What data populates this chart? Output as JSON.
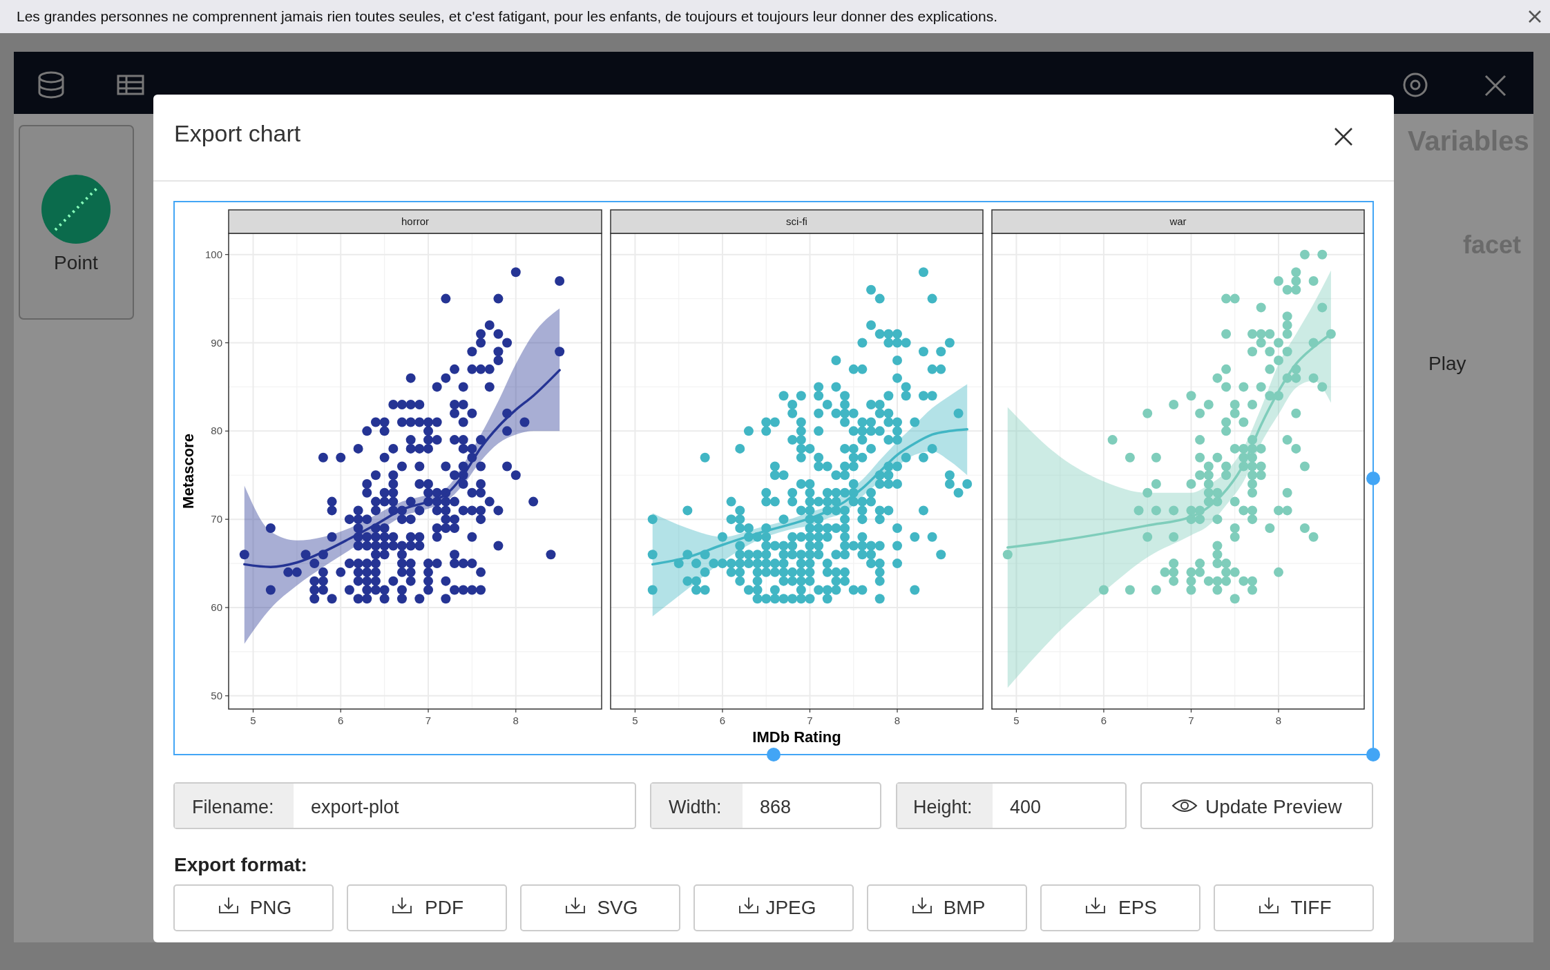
{
  "chart_data": [
    {
      "type": "scatter",
      "title": "horror",
      "ylabel": "Metascore",
      "xlim": [
        4.72,
        8.98
      ],
      "ylim": [
        48.5,
        102.4
      ],
      "xticks": [
        5,
        6,
        7,
        8
      ],
      "yticks": [
        50,
        60,
        70,
        80,
        90,
        100
      ],
      "grid": true,
      "annotations": [
        "Les grandes personnes ne comprennent jamais rien toutes seules, et c'est fatigant, pour les enfants, de toujours et toujours leur donner des explications.",
        "Export chart",
        "Filename:",
        "export-plot",
        "Width:",
        "868",
        "Height:",
        "400",
        "Update Preview",
        "Export format:",
        "PNG",
        "PDF",
        "SVG",
        "JPEG",
        "BMP",
        "EPS",
        "TIFF",
        "Point",
        "Variables",
        "facet",
        "Play"
      ],
      "series": [
        {
          "color": "#253494",
          "x": [
            8.5,
            8.0,
            7.2,
            7.8,
            7.7,
            7.6,
            7.8,
            7.6,
            7.9,
            7.5,
            7.8,
            8.5,
            7.8,
            7.3,
            7.5,
            7.6,
            7.7,
            6.8,
            7.2,
            7.1,
            7.4,
            7.7,
            6.6,
            6.7,
            6.8,
            6.9,
            7.3,
            7.4,
            7.3,
            7.5,
            7.9,
            6.4,
            6.5,
            6.7,
            6.8,
            6.9,
            7.0,
            7.1,
            7.4,
            8.1,
            6.3,
            6.5,
            7.0,
            7.9,
            6.8,
            7.0,
            7.1,
            7.3,
            7.4,
            7.6,
            6.2,
            6.6,
            6.8,
            6.9,
            7.0,
            7.4,
            7.5,
            5.8,
            6.0,
            6.5,
            7.5,
            6.7,
            6.9,
            7.2,
            7.4,
            7.6,
            7.9,
            6.4,
            6.6,
            7.3,
            7.4,
            8.0,
            6.3,
            6.6,
            6.9,
            7.0,
            7.4,
            7.6,
            6.3,
            6.5,
            6.6,
            7.0,
            7.1,
            7.2,
            7.5,
            7.6,
            5.9,
            6.4,
            6.5,
            6.6,
            6.8,
            7.0,
            7.1,
            7.2,
            7.3,
            7.7,
            8.2,
            5.9,
            6.2,
            6.4,
            6.6,
            6.7,
            6.9,
            7.1,
            7.2,
            7.4,
            7.5,
            7.6,
            7.8,
            6.1,
            6.2,
            6.3,
            6.7,
            6.8,
            7.2,
            7.3,
            7.6,
            5.2,
            6.2,
            6.4,
            6.5,
            7.1,
            7.2,
            7.3,
            5.9,
            6.2,
            6.3,
            6.4,
            6.5,
            6.6,
            6.8,
            6.9,
            7.1,
            7.5,
            6.2,
            6.3,
            6.4,
            6.5,
            6.6,
            6.7,
            6.8,
            6.9,
            7.8,
            4.9,
            5.6,
            5.8,
            6.4,
            6.5,
            6.7,
            7.3,
            8.4,
            5.7,
            6.1,
            6.2,
            6.3,
            6.4,
            6.7,
            6.8,
            7.0,
            7.1,
            7.3,
            7.4,
            7.5,
            5.4,
            5.5,
            5.8,
            6.0,
            6.2,
            6.3,
            6.4,
            6.7,
            6.8,
            7.0,
            7.6,
            5.7,
            5.8,
            6.2,
            6.3,
            6.4,
            6.6,
            6.8,
            7.0,
            7.2,
            5.2,
            5.7,
            5.8,
            6.1,
            6.3,
            6.4,
            6.5,
            6.7,
            7.0,
            7.3,
            7.4,
            7.5,
            7.6,
            5.7,
            5.9,
            6.2,
            6.3,
            6.5,
            6.7,
            6.9,
            7.2
          ],
          "values": [
            97,
            98,
            95,
            95,
            92,
            91,
            91,
            90,
            90,
            89,
            89,
            89,
            88,
            87,
            87,
            87,
            87,
            86,
            86,
            85,
            85,
            85,
            83,
            83,
            83,
            83,
            83,
            83,
            82,
            82,
            82,
            81,
            81,
            81,
            81,
            81,
            81,
            81,
            81,
            81,
            80,
            80,
            80,
            80,
            79,
            79,
            79,
            79,
            79,
            79,
            78,
            78,
            78,
            78,
            78,
            78,
            78,
            77,
            77,
            77,
            77,
            76,
            76,
            76,
            76,
            76,
            76,
            75,
            75,
            75,
            75,
            75,
            74,
            74,
            74,
            74,
            74,
            74,
            73,
            73,
            73,
            73,
            73,
            73,
            73,
            73,
            72,
            72,
            72,
            72,
            72,
            72,
            72,
            72,
            72,
            72,
            72,
            71,
            71,
            71,
            71,
            71,
            71,
            71,
            71,
            71,
            71,
            71,
            71,
            70,
            70,
            70,
            70,
            70,
            70,
            70,
            70,
            69,
            69,
            69,
            69,
            69,
            69,
            69,
            68,
            68,
            68,
            68,
            68,
            68,
            68,
            68,
            68,
            68,
            67,
            67,
            67,
            67,
            67,
            67,
            67,
            67,
            67,
            66,
            66,
            66,
            66,
            66,
            66,
            66,
            66,
            65,
            65,
            65,
            65,
            65,
            65,
            65,
            65,
            65,
            65,
            65,
            65,
            64,
            64,
            64,
            64,
            64,
            64,
            64,
            64,
            64,
            64,
            64,
            63,
            63,
            63,
            63,
            63,
            63,
            63,
            63,
            63,
            62,
            62,
            62,
            62,
            62,
            62,
            62,
            62,
            62,
            62,
            62,
            62,
            62,
            61,
            61,
            61,
            61,
            61,
            61,
            61,
            61
          ]
        },
        {
          "type": "line",
          "color": "#253494",
          "x": [
            4.9,
            5.2,
            5.5,
            5.8,
            6.1,
            6.4,
            6.7,
            7.0,
            7.2,
            7.4,
            7.6,
            7.8,
            8.0,
            8.2,
            8.5
          ],
          "values": [
            64.9,
            64.6,
            65.1,
            66.3,
            67.8,
            69.4,
            71.1,
            72.0,
            72.8,
            75.0,
            78.1,
            80.5,
            82.4,
            84.0,
            86.9
          ],
          "lower": [
            55.9,
            59.9,
            62.5,
            64.6,
            66.5,
            68.4,
            70.3,
            71.2,
            72.0,
            73.9,
            76.6,
            78.6,
            79.6,
            80.0,
            80.0
          ],
          "upper": [
            73.8,
            68.6,
            67.6,
            68.0,
            69.0,
            70.5,
            72.0,
            72.8,
            73.5,
            76.2,
            79.6,
            83.4,
            87.6,
            91.0,
            93.9
          ]
        }
      ]
    },
    {
      "type": "scatter",
      "title": "sci-fi",
      "xlabel": "IMDb Rating",
      "xlim": [
        4.72,
        8.98
      ],
      "ylim": [
        48.5,
        102.4
      ],
      "xticks": [
        5,
        6,
        7,
        8
      ],
      "yticks": [
        50,
        60,
        70,
        80,
        90,
        100
      ],
      "grid": true,
      "tick_labels": "x",
      "series": [
        {
          "color": "#41b6c4",
          "x": [
            8.3,
            7.7,
            7.8,
            8.4,
            7.7,
            7.8,
            7.9,
            8.0,
            7.6,
            7.9,
            8.0,
            8.1,
            8.6,
            8.3,
            8.5,
            7.3,
            8.0,
            7.5,
            7.6,
            8.4,
            8.5,
            8.0,
            7.1,
            7.3,
            8.1,
            6.7,
            6.9,
            7.1,
            7.4,
            7.9,
            8.1,
            8.3,
            8.4,
            6.8,
            7.2,
            7.4,
            7.7,
            7.8,
            6.8,
            7.1,
            7.3,
            7.4,
            7.5,
            7.8,
            7.9,
            8.7,
            6.5,
            6.6,
            6.9,
            7.4,
            7.6,
            7.7,
            7.9,
            8.0,
            8.2,
            6.3,
            6.5,
            6.9,
            7.1,
            7.5,
            7.6,
            7.7,
            7.8,
            8.0,
            6.8,
            6.9,
            7.6,
            7.9,
            8.0,
            6.2,
            6.9,
            7.0,
            7.4,
            7.5,
            7.7,
            8.4,
            5.8,
            6.9,
            7.1,
            7.5,
            7.6,
            8.1,
            8.3,
            6.6,
            7.1,
            7.2,
            7.4,
            7.5,
            7.9,
            8.0,
            6.6,
            6.7,
            7.3,
            7.4,
            7.8,
            7.9,
            8.6,
            6.9,
            7.0,
            7.5,
            7.8,
            7.9,
            8.0,
            8.6,
            8.8,
            6.5,
            6.8,
            7.0,
            7.2,
            7.3,
            7.4,
            7.5,
            7.7,
            8.7,
            6.1,
            6.5,
            6.6,
            6.8,
            7.0,
            7.1,
            7.2,
            7.3,
            7.5,
            7.6,
            7.7,
            5.6,
            6.2,
            6.9,
            7.0,
            7.2,
            7.3,
            7.4,
            7.6,
            7.8,
            7.9,
            8.3,
            5.2,
            6.1,
            6.2,
            6.7,
            7.0,
            7.1,
            7.4,
            7.6,
            7.8,
            6.2,
            6.3,
            6.5,
            7.0,
            7.1,
            7.2,
            7.3,
            7.4,
            8.0,
            6.0,
            6.3,
            6.4,
            6.5,
            6.8,
            6.9,
            7.0,
            7.1,
            7.2,
            7.4,
            7.6,
            8.2,
            8.4,
            6.2,
            6.5,
            6.6,
            6.7,
            6.8,
            7.0,
            7.1,
            7.4,
            7.5,
            7.6,
            7.7,
            7.8,
            8.0,
            5.2,
            5.6,
            5.8,
            6.2,
            6.3,
            6.4,
            6.5,
            6.7,
            6.8,
            6.9,
            7.0,
            7.1,
            7.3,
            7.4,
            7.6,
            7.7,
            8.5,
            5.5,
            5.7,
            5.9,
            6.0,
            6.1,
            6.2,
            6.3,
            6.4,
            6.5,
            6.6,
            6.7,
            6.9,
            7.0,
            7.2,
            7.7,
            7.8,
            8.0,
            5.8,
            6.1,
            6.2,
            6.4,
            6.5,
            6.6,
            6.7,
            6.8,
            6.9,
            7.0,
            7.2,
            7.3,
            7.4,
            7.8,
            5.6,
            5.7,
            6.2,
            6.4,
            6.7,
            6.8,
            6.9,
            7.0,
            7.3,
            7.4,
            7.8,
            5.2,
            5.7,
            5.8,
            6.3,
            6.4,
            6.6,
            6.9,
            7.1,
            7.2,
            7.3,
            7.5,
            7.6,
            8.2,
            6.4,
            6.5,
            6.6,
            6.7,
            6.8,
            6.9,
            7.0,
            7.2,
            7.8
          ],
          "values": [
            98,
            96,
            95,
            95,
            92,
            91,
            91,
            91,
            90,
            90,
            90,
            90,
            90,
            89,
            89,
            88,
            88,
            87,
            87,
            87,
            87,
            86,
            85,
            85,
            85,
            84,
            84,
            84,
            84,
            84,
            84,
            84,
            84,
            83,
            83,
            83,
            83,
            83,
            82,
            82,
            82,
            82,
            82,
            82,
            82,
            82,
            81,
            81,
            81,
            81,
            81,
            81,
            81,
            81,
            81,
            80,
            80,
            80,
            80,
            80,
            80,
            80,
            80,
            80,
            79,
            79,
            79,
            79,
            79,
            78,
            78,
            78,
            78,
            78,
            78,
            78,
            77,
            77,
            77,
            77,
            77,
            77,
            77,
            76,
            76,
            76,
            76,
            76,
            76,
            76,
            75,
            75,
            75,
            75,
            75,
            75,
            75,
            74,
            74,
            74,
            74,
            74,
            74,
            74,
            74,
            73,
            73,
            73,
            73,
            73,
            73,
            73,
            73,
            73,
            72,
            72,
            72,
            72,
            72,
            72,
            72,
            72,
            72,
            72,
            72,
            71,
            71,
            71,
            71,
            71,
            71,
            71,
            71,
            71,
            71,
            71,
            70,
            70,
            70,
            70,
            70,
            70,
            70,
            70,
            70,
            69,
            69,
            69,
            69,
            69,
            69,
            69,
            69,
            69,
            68,
            68,
            68,
            68,
            68,
            68,
            68,
            68,
            68,
            68,
            68,
            68,
            68,
            67,
            67,
            67,
            67,
            67,
            67,
            67,
            67,
            67,
            67,
            67,
            67,
            67,
            66,
            66,
            66,
            66,
            66,
            66,
            66,
            66,
            66,
            66,
            66,
            66,
            66,
            66,
            66,
            66,
            66,
            65,
            65,
            65,
            65,
            65,
            65,
            65,
            65,
            65,
            65,
            65,
            65,
            65,
            65,
            65,
            65,
            65,
            64,
            64,
            64,
            64,
            64,
            64,
            64,
            64,
            64,
            64,
            64,
            64,
            64,
            64,
            63,
            63,
            63,
            63,
            63,
            63,
            63,
            63,
            63,
            63,
            63,
            62,
            62,
            62,
            62,
            62,
            62,
            62,
            62,
            62,
            62,
            62,
            62,
            62,
            61,
            61,
            61,
            61,
            61,
            61,
            61,
            61,
            61
          ]
        },
        {
          "type": "line",
          "color": "#41b6c4",
          "x": [
            5.2,
            5.6,
            6.0,
            6.4,
            6.8,
            7.0,
            7.2,
            7.4,
            7.6,
            7.8,
            8.0,
            8.2,
            8.4,
            8.6,
            8.8
          ],
          "values": [
            64.9,
            65.7,
            67.1,
            68.4,
            69.5,
            70.1,
            70.9,
            72.0,
            73.5,
            75.4,
            77.3,
            78.6,
            79.6,
            80.0,
            80.2
          ],
          "lower": [
            59.0,
            62.1,
            65.2,
            67.6,
            68.9,
            69.3,
            70.1,
            70.8,
            72.6,
            74.3,
            76.0,
            77.3,
            77.7,
            76.6,
            75.0
          ],
          "upper": [
            70.7,
            69.0,
            68.0,
            69.0,
            70.1,
            70.8,
            71.5,
            73.0,
            74.5,
            76.7,
            78.8,
            80.7,
            82.6,
            84.0,
            85.3
          ]
        }
      ]
    },
    {
      "type": "scatter",
      "title": "war",
      "xlim": [
        4.72,
        8.98
      ],
      "ylim": [
        48.5,
        102.4
      ],
      "xticks": [
        5,
        6,
        7,
        8
      ],
      "yticks": [
        50,
        60,
        70,
        80,
        90,
        100
      ],
      "grid": true,
      "tick_labels": "x",
      "series": [
        {
          "color": "#7fcdbb",
          "x": [
            8.3,
            8.5,
            8.2,
            8.0,
            8.2,
            8.4,
            8.1,
            8.2,
            7.4,
            7.5,
            7.8,
            8.5,
            8.1,
            8.1,
            7.4,
            7.7,
            7.8,
            7.9,
            8.1,
            8.6,
            7.8,
            8.0,
            8.4,
            7.7,
            7.9,
            8.1,
            8.0,
            7.4,
            7.9,
            8.2,
            7.3,
            8.1,
            8.2,
            8.4,
            7.4,
            7.6,
            7.8,
            8.5,
            7.0,
            7.9,
            8.0,
            6.8,
            7.2,
            7.5,
            7.7,
            6.5,
            7.1,
            7.5,
            8.2,
            7.4,
            7.6,
            7.4,
            6.1,
            7.1,
            7.7,
            8.1,
            7.5,
            7.6,
            7.7,
            7.8,
            8.2,
            6.3,
            6.6,
            7.1,
            7.3,
            7.6,
            7.7,
            7.2,
            7.4,
            7.6,
            7.7,
            7.8,
            8.3,
            7.1,
            7.2,
            7.4,
            7.7,
            7.8,
            6.6,
            7.0,
            7.2,
            7.7,
            6.5,
            7.2,
            7.3,
            7.7,
            8.1,
            7.2,
            7.3,
            7.5,
            6.4,
            6.6,
            6.8,
            7.0,
            7.1,
            7.6,
            7.7,
            8.0,
            8.1,
            7.0,
            7.1,
            7.3,
            7.7,
            7.5,
            7.9,
            8.3,
            6.5,
            6.8,
            7.5,
            8.4,
            7.3,
            4.9,
            7.3,
            6.8,
            7.1,
            7.3,
            7.4,
            6.7,
            6.8,
            7.0,
            7.1,
            7.4,
            7.5,
            8.0,
            6.8,
            7.0,
            7.2,
            7.3,
            7.4,
            7.6,
            7.7,
            6.0,
            6.3,
            6.6,
            7.0,
            7.3,
            7.7,
            7.5
          ],
          "values": [
            100,
            100,
            98,
            97,
            97,
            97,
            96,
            96,
            95,
            95,
            94,
            94,
            93,
            92,
            91,
            91,
            91,
            91,
            91,
            91,
            90,
            90,
            90,
            89,
            89,
            89,
            88,
            87,
            87,
            87,
            86,
            86,
            86,
            86,
            85,
            85,
            85,
            85,
            84,
            84,
            84,
            83,
            83,
            83,
            83,
            82,
            82,
            82,
            82,
            81,
            81,
            80,
            79,
            79,
            79,
            79,
            78,
            78,
            78,
            78,
            78,
            77,
            77,
            77,
            77,
            77,
            77,
            76,
            76,
            76,
            76,
            76,
            76,
            75,
            75,
            75,
            75,
            75,
            74,
            74,
            74,
            74,
            73,
            73,
            73,
            73,
            73,
            72,
            72,
            72,
            71,
            71,
            71,
            71,
            71,
            71,
            71,
            71,
            71,
            70,
            70,
            70,
            70,
            69,
            69,
            69,
            68,
            68,
            68,
            68,
            67,
            66,
            66,
            65,
            65,
            65,
            65,
            64,
            64,
            64,
            64,
            64,
            64,
            64,
            63,
            63,
            63,
            63,
            63,
            63,
            63,
            62,
            62,
            62,
            62,
            62,
            62,
            61
          ]
        },
        {
          "type": "line",
          "color": "#7fcdbb",
          "x": [
            4.9,
            5.5,
            6.0,
            6.5,
            7.0,
            7.2,
            7.4,
            7.6,
            7.8,
            8.0,
            8.2,
            8.4,
            8.6
          ],
          "values": [
            66.8,
            67.6,
            68.4,
            69.3,
            70.3,
            71.4,
            73.3,
            76.2,
            80.7,
            84.5,
            87.6,
            89.5,
            91.0
          ],
          "lower": [
            50.9,
            57.4,
            61.8,
            65.7,
            68.2,
            69.3,
            71.6,
            74.3,
            78.6,
            81.9,
            84.9,
            85.7,
            83.2
          ],
          "upper": [
            82.7,
            77.1,
            74.3,
            73.0,
            73.0,
            73.9,
            75.4,
            78.1,
            82.6,
            87.6,
            91.0,
            94.4,
            98.2
          ]
        }
      ]
    }
  ]
}
